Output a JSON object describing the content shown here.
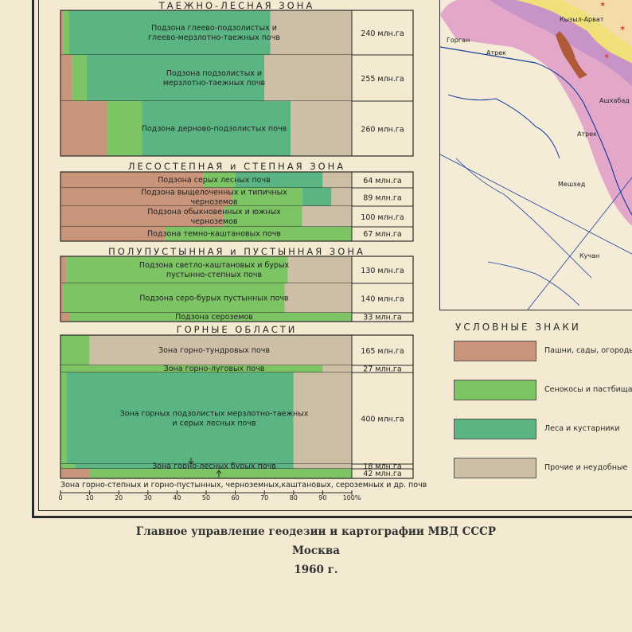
{
  "colors": {
    "pashni": "#c8957a",
    "senokos": "#7cc464",
    "lesa": "#5bb583",
    "prochie": "#cdbfa6",
    "frame": "#2a2a2a",
    "paper": "#f3ead1"
  },
  "zones": [
    {
      "title": "ТАЕЖНО-ЛЕСНАЯ ЗОНА",
      "title_y": 7
    },
    {
      "title": "ЛЕСОСТЕПНАЯ и СТЕПНАЯ ЗОНА",
      "title_y": 209
    },
    {
      "title": "ПОЛУПУСТЫННАЯ и ПУСТЫННАЯ ЗОНА",
      "title_y": 316
    },
    {
      "title": "ГОРНЫЕ ОБЛАСТИ",
      "title_y": 414
    }
  ],
  "chart_data": {
    "type": "bar",
    "orientation": "horizontal-stacked-percent",
    "xlim": [
      0,
      100
    ],
    "ticks": [
      "0",
      "10",
      "20",
      "30",
      "40",
      "50",
      "60",
      "70",
      "80",
      "90",
      "100%"
    ],
    "legend": [
      "Пашни, сады, огороды",
      "Сенокосы и пастбища",
      "Леса и кустарники",
      "Прочие и неудобные"
    ],
    "series_keys": [
      "pashni",
      "senokos",
      "lesa",
      "prochie"
    ],
    "rows": [
      {
        "label": [
          "Подзона глеево-подзолистых и",
          "глеево-мерзлотно-таежных почв"
        ],
        "area": "240 млн.га",
        "values": [
          1,
          2,
          69,
          28
        ]
      },
      {
        "label": [
          "Подзона подзолистых и",
          "мерзлотно-таежных почв"
        ],
        "area": "255 млн.га",
        "values": [
          4,
          5,
          61,
          30
        ]
      },
      {
        "label": [
          "Подзона дерново-подзолистых почв"
        ],
        "area": "260 млн.га",
        "values": [
          16,
          12,
          51,
          21
        ]
      },
      {
        "label": [
          "Подзона серых лесных почв"
        ],
        "area": "64 млн.га",
        "values": [
          49,
          11,
          30,
          10
        ]
      },
      {
        "label": [
          "Подзона выщелоченных и типичных",
          "черноземов"
        ],
        "area": "89 млн.га",
        "values": [
          59,
          24,
          10,
          7
        ]
      },
      {
        "label": [
          "Подзона обыкновенных и южных",
          "черноземов"
        ],
        "area": "100 млн.га",
        "values": [
          56,
          27,
          0,
          17
        ]
      },
      {
        "label": [
          "Подзона темно-каштановых почв"
        ],
        "area": "67 млн.га",
        "values": [
          36,
          64,
          0,
          0
        ]
      },
      {
        "label": [
          "Подзона светло-каштановых и бурых",
          "пустынно-степных почв"
        ],
        "area": "130 млн.га",
        "values": [
          2,
          76,
          0,
          22
        ]
      },
      {
        "label": [
          "Подзона серо-бурых пустынных почв"
        ],
        "area": "140 млн.га",
        "values": [
          1,
          76,
          0,
          23
        ]
      },
      {
        "label": [
          "Подзона сероземов"
        ],
        "area": "33 млн.га",
        "values": [
          3,
          97,
          0,
          0
        ]
      },
      {
        "label": [
          "Зона горно-тундровых почв"
        ],
        "area": "165 млн.га",
        "values": [
          0,
          10,
          0,
          90
        ]
      },
      {
        "label": [
          "Зона горно-луговых почв"
        ],
        "area": "27 млн.га",
        "values": [
          0,
          90,
          0,
          10
        ]
      },
      {
        "label": [
          "Зона горных подзолистых мерзлотно-таежных",
          "и серых лесных почв"
        ],
        "area": "400 млн.га",
        "values": [
          0,
          2,
          78,
          20
        ]
      },
      {
        "label": [
          "Зона горно-лесных бурых почв"
        ],
        "area": "18 млн.га",
        "values": [
          0,
          5,
          75,
          20
        ]
      },
      {
        "label": [
          "Зона горно-степных и горно-пустынных, черноземных,каштановых, сероземных и др. почв"
        ],
        "area": "42 млн.га",
        "values": [
          10,
          90,
          0,
          0
        ]
      }
    ]
  },
  "legend_block": {
    "title": "УСЛОВНЫЕ ЗНАКИ",
    "items": [
      {
        "key": "pashni",
        "label": "Пашни, сады, огороды"
      },
      {
        "key": "senokos",
        "label": "Сенокосы и пастбища"
      },
      {
        "key": "lesa",
        "label": "Леса и кустарники"
      },
      {
        "key": "prochie",
        "label": "Прочие и неудобные"
      }
    ]
  },
  "map": {
    "place_names": [
      "Горган",
      "Атрек",
      "Кызыл-Арват",
      "Ашхабад",
      "Мешхед",
      "Атрек",
      "Кучан"
    ]
  },
  "imprint": {
    "line1": "Главное управление геодезии и картографии МВД СССР",
    "line2": "Москва",
    "line3": "1960 г."
  }
}
